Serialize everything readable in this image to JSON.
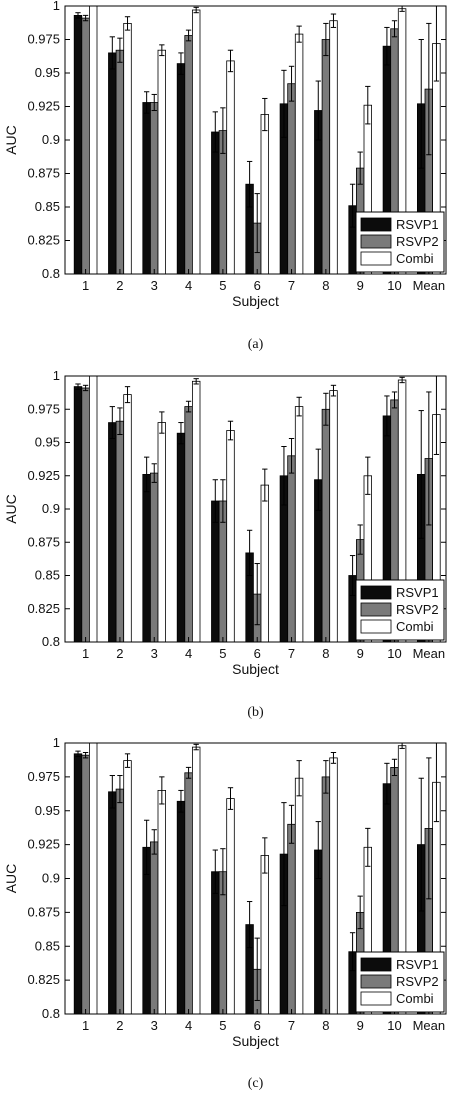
{
  "figure": {
    "panel_labels": [
      "(a)",
      "(b)",
      "(c)"
    ]
  },
  "colors": {
    "RSVP1": "#0c0c0c",
    "RSVP2": "#7a7a7a",
    "Combi": "#ffffff",
    "axis": "#000000"
  },
  "chart_data": [
    {
      "type": "bar",
      "panel": "(a)",
      "xlabel": "Subject",
      "ylabel": "AUC",
      "ylim": [
        0.8,
        1.0
      ],
      "yticks": [
        "0.8",
        "0.825",
        "0.85",
        "0.875",
        "0.9",
        "0.925",
        "0.95",
        "0.975",
        "1"
      ],
      "categories": [
        "1",
        "2",
        "3",
        "4",
        "5",
        "6",
        "7",
        "8",
        "9",
        "10",
        "Mean"
      ],
      "legend_position": "bottom-right",
      "series": [
        {
          "name": "RSVP1",
          "values": [
            0.993,
            0.965,
            0.928,
            0.957,
            0.906,
            0.867,
            0.927,
            0.922,
            0.851,
            0.97,
            0.927
          ],
          "errors": [
            0.002,
            0.012,
            0.008,
            0.008,
            0.015,
            0.017,
            0.025,
            0.022,
            0.016,
            0.014,
            0.048
          ]
        },
        {
          "name": "RSVP2",
          "values": [
            0.991,
            0.967,
            0.928,
            0.978,
            0.907,
            0.838,
            0.942,
            0.975,
            0.879,
            0.983,
            0.938
          ],
          "errors": [
            0.002,
            0.009,
            0.006,
            0.004,
            0.017,
            0.022,
            0.013,
            0.012,
            0.012,
            0.006,
            0.049
          ]
        },
        {
          "name": "Combi",
          "values": [
            1.0,
            0.987,
            0.967,
            0.997,
            0.959,
            0.919,
            0.979,
            0.989,
            0.926,
            0.998,
            0.972
          ],
          "errors": [
            0.0,
            0.005,
            0.004,
            0.002,
            0.008,
            0.012,
            0.006,
            0.005,
            0.014,
            0.002,
            0.028
          ]
        }
      ]
    },
    {
      "type": "bar",
      "panel": "(b)",
      "xlabel": "Subject",
      "ylabel": "AUC",
      "ylim": [
        0.8,
        1.0
      ],
      "yticks": [
        "0.8",
        "0.825",
        "0.85",
        "0.875",
        "0.9",
        "0.925",
        "0.95",
        "0.975",
        "1"
      ],
      "categories": [
        "1",
        "2",
        "3",
        "4",
        "5",
        "6",
        "7",
        "8",
        "9",
        "10",
        "Mean"
      ],
      "legend_position": "bottom-right",
      "series": [
        {
          "name": "RSVP1",
          "values": [
            0.992,
            0.965,
            0.926,
            0.957,
            0.906,
            0.867,
            0.925,
            0.922,
            0.85,
            0.97,
            0.926
          ],
          "errors": [
            0.002,
            0.012,
            0.013,
            0.008,
            0.016,
            0.017,
            0.022,
            0.023,
            0.015,
            0.015,
            0.048
          ]
        },
        {
          "name": "RSVP2",
          "values": [
            0.991,
            0.966,
            0.927,
            0.977,
            0.906,
            0.836,
            0.94,
            0.975,
            0.877,
            0.982,
            0.938
          ],
          "errors": [
            0.002,
            0.01,
            0.007,
            0.004,
            0.016,
            0.023,
            0.013,
            0.012,
            0.011,
            0.006,
            0.05
          ]
        },
        {
          "name": "Combi",
          "values": [
            1.0,
            0.986,
            0.965,
            0.996,
            0.959,
            0.918,
            0.977,
            0.989,
            0.925,
            0.997,
            0.971
          ],
          "errors": [
            0.0,
            0.006,
            0.008,
            0.002,
            0.007,
            0.012,
            0.007,
            0.004,
            0.014,
            0.002,
            0.03
          ]
        }
      ]
    },
    {
      "type": "bar",
      "panel": "(c)",
      "xlabel": "Subject",
      "ylabel": "AUC",
      "ylim": [
        0.8,
        1.0
      ],
      "yticks": [
        "0.8",
        "0.825",
        "0.85",
        "0.875",
        "0.9",
        "0.925",
        "0.95",
        "0.975",
        "1"
      ],
      "categories": [
        "1",
        "2",
        "3",
        "4",
        "5",
        "6",
        "7",
        "8",
        "9",
        "10",
        "Mean"
      ],
      "legend_position": "bottom-right",
      "series": [
        {
          "name": "RSVP1",
          "values": [
            0.992,
            0.964,
            0.923,
            0.957,
            0.905,
            0.866,
            0.918,
            0.921,
            0.846,
            0.97,
            0.925
          ],
          "errors": [
            0.002,
            0.012,
            0.02,
            0.008,
            0.016,
            0.017,
            0.038,
            0.021,
            0.014,
            0.015,
            0.049
          ]
        },
        {
          "name": "RSVP2",
          "values": [
            0.991,
            0.966,
            0.927,
            0.978,
            0.905,
            0.833,
            0.94,
            0.975,
            0.875,
            0.982,
            0.937
          ],
          "errors": [
            0.002,
            0.01,
            0.009,
            0.004,
            0.017,
            0.023,
            0.014,
            0.012,
            0.012,
            0.006,
            0.052
          ]
        },
        {
          "name": "Combi",
          "values": [
            1.0,
            0.987,
            0.965,
            0.997,
            0.959,
            0.917,
            0.974,
            0.989,
            0.923,
            0.998,
            0.971
          ],
          "errors": [
            0.0,
            0.005,
            0.01,
            0.002,
            0.008,
            0.013,
            0.013,
            0.004,
            0.014,
            0.002,
            0.029
          ]
        }
      ]
    }
  ]
}
